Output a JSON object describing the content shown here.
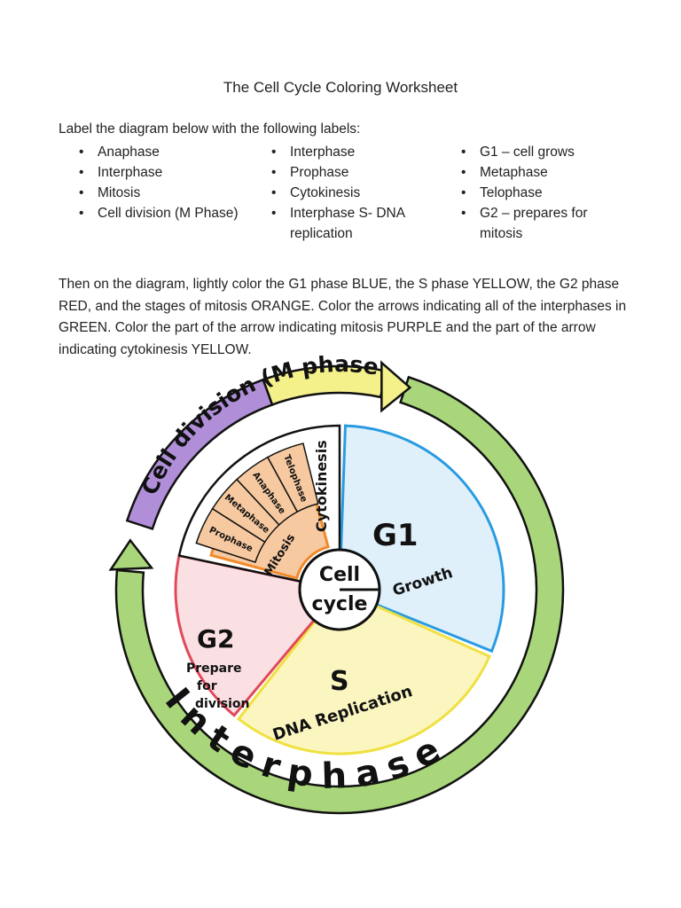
{
  "title": "The Cell Cycle Coloring Worksheet",
  "intro": "Label the diagram below with the following labels:",
  "label_columns": [
    [
      "Anaphase",
      "Interphase",
      "Mitosis",
      "Cell division (M Phase)"
    ],
    [
      "Interphase",
      "Prophase",
      "Cytokinesis",
      "Interphase S- DNA replication"
    ],
    [
      "G1 – cell grows",
      "Metaphase",
      "Telophase",
      "G2 – prepares for mitosis"
    ]
  ],
  "instructions": "Then on the diagram, lightly color the G1 phase BLUE, the S phase YELLOW, the G2 phase RED, and the stages of mitosis ORANGE. Color the arrows indicating all of the interphases in GREEN. Color the part of the arrow indicating mitosis PURPLE and the part of the arrow indicating cytokinesis YELLOW.",
  "diagram": {
    "center": [
      "Cell",
      "cycle"
    ],
    "g1": {
      "name": "G1",
      "desc": "Growth",
      "color": "#dff0fb",
      "stroke": "#2a9be0"
    },
    "s": {
      "name": "S",
      "desc": "DNA Replication",
      "color": "#fbf6c0",
      "stroke": "#f0e040"
    },
    "g2": {
      "name": "G2",
      "desc": [
        "Prepare",
        "for",
        "division"
      ],
      "color": "#fbe0e3",
      "stroke": "#e04a5a"
    },
    "mitosis_stages": [
      "Prophase",
      "Metaphase",
      "Anaphase",
      "Telophase"
    ],
    "mitosis": "Mitosis",
    "cytokinesis": "Cytokinesis",
    "mitosis_color": "#f7c9a0",
    "mitosis_stroke": "#f08a2a",
    "arrow_m_phase": "Cell division (M phase)",
    "arrow_interphase": "Interphase",
    "green": "#a9d67a",
    "purple": "#b08fd8",
    "yellow": "#f4f08a"
  }
}
